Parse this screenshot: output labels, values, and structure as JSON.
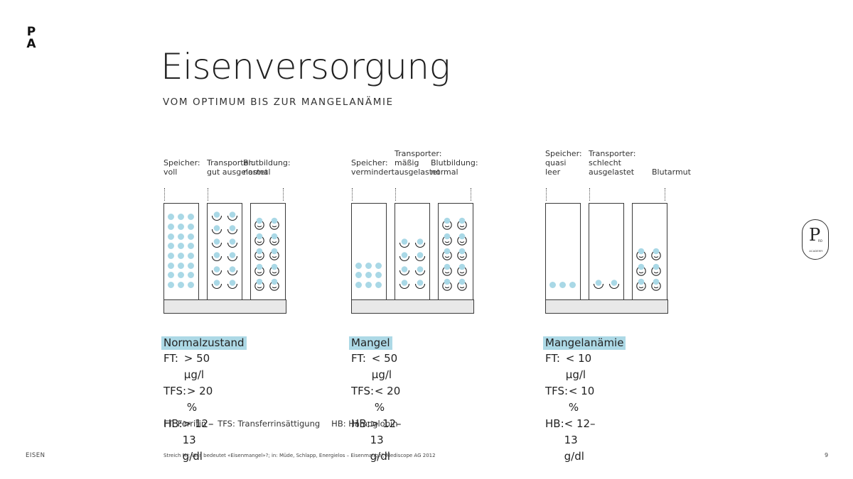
{
  "brand": {
    "logo_line1": "P",
    "logo_line2": "A",
    "badge_letter": "P",
    "badge_small": "RO",
    "badge_ring_text": "ACADEMY"
  },
  "header": {
    "title": "Eisenversorgung",
    "subtitle": "VOM OPTIMUM BIS ZUR MANGELANÄMIE"
  },
  "colors": {
    "iron_dot": "#a9d8e6",
    "highlight": "#add9e6",
    "base_bar": "#e8e8e8",
    "outline": "#3a3a3a"
  },
  "states": [
    {
      "name": "Normalzustand",
      "labels": {
        "speicher": "Speicher:\nvoll",
        "transporter": "Transporter:\ngut ausgelastet",
        "blut": "Blutbildung:\nnormal"
      },
      "storage_dots": {
        "cols": 3,
        "rows": 8
      },
      "transporter_cups": {
        "cols": 2,
        "rows": 6
      },
      "blood_cells": {
        "cols": 2,
        "rows": 5
      },
      "values": [
        {
          "key": "FT:",
          "value": "> 50 µg/l"
        },
        {
          "key": "TFS:",
          "value": "> 20 %"
        },
        {
          "key": "HB:",
          "value": "> 12–13 g/dl"
        }
      ]
    },
    {
      "name": "Mangel",
      "labels": {
        "speicher": "Speicher:\nvermindert",
        "transporter": "Transporter:\nmäßig\nausgelastet",
        "blut": "Blutbildung:\nnormal"
      },
      "storage_dots": {
        "cols": 3,
        "rows": 3
      },
      "transporter_cups": {
        "cols": 2,
        "rows": 4
      },
      "blood_cells": {
        "cols": 2,
        "rows": 5
      },
      "values": [
        {
          "key": "FT:",
          "value": "< 50 µg/l"
        },
        {
          "key": "TFS:",
          "value": "< 20 %"
        },
        {
          "key": "HB:",
          "value": "> 12–13 g/dl"
        }
      ]
    },
    {
      "name": "Mangelanämie",
      "labels": {
        "speicher": "Speicher:\nquasi\nleer",
        "transporter": "Transporter:\nschlecht\nausgelastet",
        "blut": "Blutarmut"
      },
      "storage_dots": {
        "cols": 3,
        "rows": 1
      },
      "transporter_cups": {
        "cols": 2,
        "rows": 1
      },
      "blood_cells": {
        "cols": 2,
        "rows": 3
      },
      "values": [
        {
          "key": "FT:",
          "value": "< 10 µg/l"
        },
        {
          "key": "TFS:",
          "value": "< 10 %"
        },
        {
          "key": "HB:",
          "value": "< 12–13 g/dl"
        }
      ]
    }
  ],
  "legend": [
    {
      "text": "FT: Ferritin"
    },
    {
      "text": "TFS: Transferrinsättigung"
    },
    {
      "text": "HB: Hämoglobin"
    }
  ],
  "footer": {
    "section": "EISEN",
    "source": "Streich M.; Was bedeutet «Eisenmangel»?; in: Müde, Schlapp, Energielos – Eisenmangel; Mediscope AG 2012",
    "page": "9"
  }
}
